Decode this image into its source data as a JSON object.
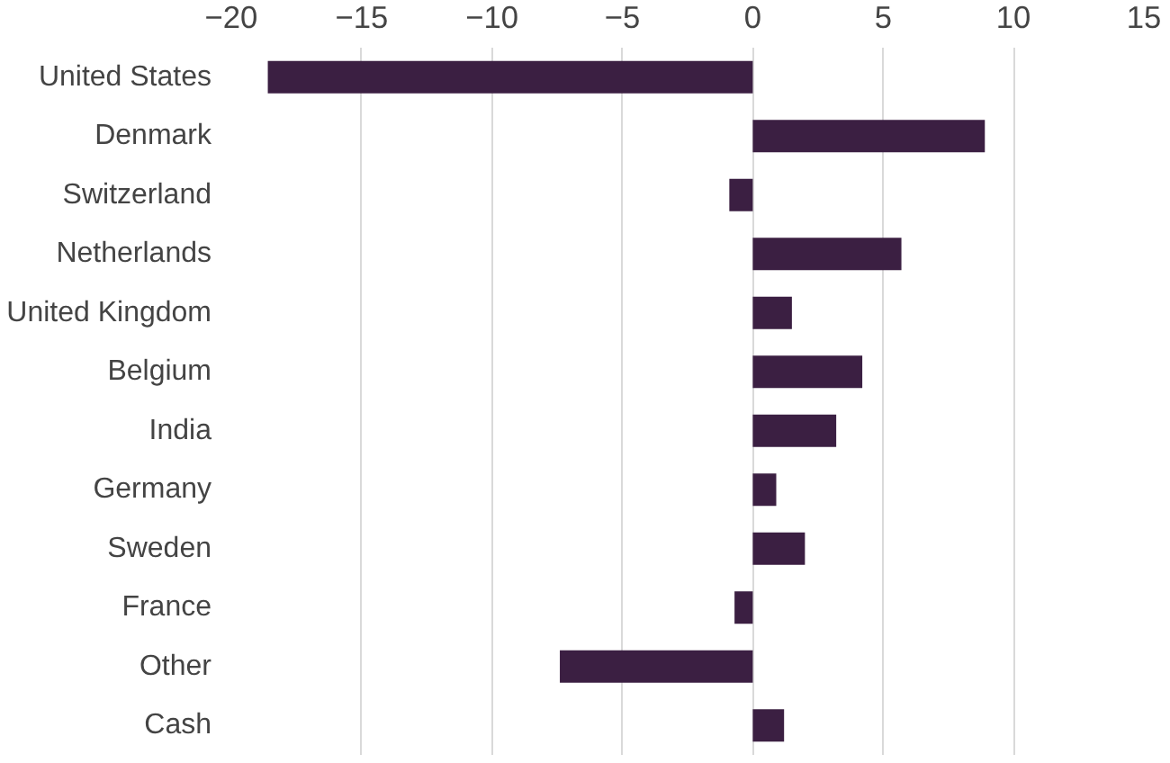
{
  "chart_data": {
    "type": "bar",
    "orientation": "horizontal",
    "categories": [
      "United States",
      "Denmark",
      "Switzerland",
      "Netherlands",
      "United Kingdom",
      "Belgium",
      "India",
      "Germany",
      "Sweden",
      "France",
      "Other",
      "Cash"
    ],
    "values": [
      -18.6,
      8.9,
      -0.9,
      5.7,
      1.5,
      4.2,
      3.2,
      0.9,
      2.0,
      -0.7,
      -7.4,
      1.2
    ],
    "color": "#3b1f42",
    "xlim": [
      -20,
      15
    ],
    "xticks": [
      -20,
      -15,
      -10,
      -5,
      0,
      5,
      10,
      15
    ],
    "grid": "x"
  }
}
